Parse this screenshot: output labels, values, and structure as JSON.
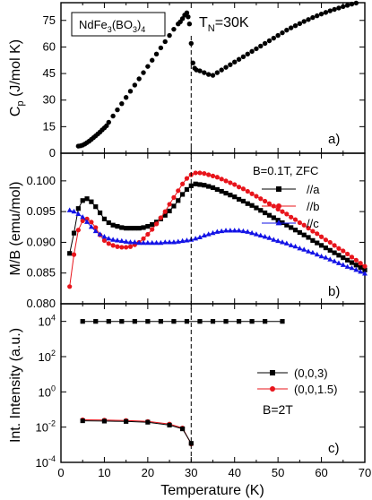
{
  "colors": {
    "black": "#000000",
    "red": "#e8141b",
    "blue": "#1212e6"
  },
  "transition": {
    "x": 30,
    "label": "T",
    "label_sub": "N",
    "label_value": "=30K"
  },
  "compound": {
    "base": "NdFe",
    "sub1": "3",
    "mid": "(BO",
    "sub2": "3",
    "close": ")",
    "sub3": "4"
  },
  "xaxis": {
    "label": "Temperature (K)",
    "range": [
      0,
      70
    ],
    "ticks": [
      "0",
      "10",
      "20",
      "30",
      "40",
      "50",
      "60",
      "70"
    ]
  },
  "chart_data": [
    {
      "type": "scatter",
      "panel": "a)",
      "ylabel_main": "C",
      "ylabel_sub": "p",
      "ylabel_unit": " (J/mol K)",
      "ylim": [
        0,
        85
      ],
      "yticks": [
        "0",
        "15",
        "30",
        "45",
        "60",
        "75"
      ],
      "series": [
        {
          "color": "#000000",
          "marker": "circle",
          "x": [
            4.0,
            4.5,
            5.0,
            5.5,
            6.0,
            6.5,
            7.0,
            7.5,
            8.0,
            8.5,
            9.0,
            9.5,
            10.0,
            10.5,
            11,
            12,
            13,
            14,
            15,
            16,
            17,
            18,
            19,
            20,
            21,
            22,
            23,
            24,
            25,
            26,
            27,
            27.5,
            28,
            28.5,
            29,
            29.3,
            29.6,
            30,
            30.4,
            30.8,
            31.2,
            32,
            33,
            34,
            35,
            36,
            37,
            38,
            39,
            40,
            41,
            42,
            43,
            44,
            45,
            46,
            47,
            48,
            49,
            50,
            51,
            52,
            53,
            54,
            55,
            56,
            57,
            58,
            59,
            60,
            61,
            62,
            63,
            64,
            65,
            66,
            67,
            68,
            69,
            70
          ],
          "y": [
            4.0,
            4.2,
            4.6,
            5.2,
            6.0,
            6.8,
            7.8,
            8.8,
            9.8,
            10.9,
            12.0,
            13.2,
            14.3,
            15.5,
            17.5,
            21.0,
            24.5,
            28.0,
            31.5,
            35.0,
            38.5,
            42.0,
            45.5,
            49.0,
            52.5,
            56.0,
            59.5,
            63.0,
            66.5,
            70.0,
            73.0,
            74.2,
            76.0,
            78.0,
            79.3,
            77.0,
            73.0,
            62.0,
            51.0,
            48.0,
            47.0,
            46.5,
            45.5,
            44.5,
            44.0,
            45.5,
            47.0,
            48.5,
            50.0,
            51.5,
            53.0,
            54.5,
            56.0,
            57.5,
            59.0,
            60.5,
            62.0,
            63.5,
            65.0,
            66.5,
            68.0,
            69.5,
            70.8,
            72.0,
            73.2,
            74.4,
            75.5,
            76.6,
            77.6,
            78.6,
            79.5,
            80.4,
            81.2,
            82.0,
            82.8,
            83.5,
            84.2,
            84.8,
            85.4,
            86.0
          ]
        }
      ]
    },
    {
      "type": "line",
      "panel": "b)",
      "ylabel": "M/B (emu/mol)",
      "ylim": [
        0.08,
        0.1045
      ],
      "yticks": [
        "0.080",
        "0.085",
        "0.090",
        "0.095",
        "0.100"
      ],
      "legend_title": "B=0.1T, ZFC",
      "series": [
        {
          "name": "//a",
          "color": "#000000",
          "marker": "square",
          "x": [
            2,
            3,
            4,
            5,
            6,
            7,
            8,
            9,
            10,
            11,
            12,
            13,
            14,
            15,
            16,
            17,
            18,
            19,
            20,
            21,
            22,
            23,
            24,
            25,
            26,
            27,
            28,
            29,
            30,
            31,
            32,
            33,
            34,
            35,
            36,
            37,
            38,
            39,
            40,
            41,
            42,
            43,
            44,
            45,
            46,
            47,
            48,
            49,
            50,
            51,
            52,
            53,
            54,
            55,
            56,
            57,
            58,
            59,
            60,
            61,
            62,
            63,
            64,
            65,
            66,
            67,
            68,
            69,
            70
          ],
          "y": [
            0.0882,
            0.0915,
            0.0955,
            0.0968,
            0.0971,
            0.0966,
            0.0958,
            0.0948,
            0.0938,
            0.0932,
            0.0928,
            0.0926,
            0.0924,
            0.0923,
            0.0923,
            0.0923,
            0.0923,
            0.0924,
            0.0926,
            0.0929,
            0.0933,
            0.0938,
            0.0944,
            0.0951,
            0.0959,
            0.0968,
            0.0978,
            0.0986,
            0.0992,
            0.0995,
            0.0994,
            0.0993,
            0.0991,
            0.0989,
            0.0986,
            0.0983,
            0.098,
            0.0977,
            0.0974,
            0.097,
            0.0967,
            0.0963,
            0.096,
            0.0956,
            0.0952,
            0.0948,
            0.0944,
            0.094,
            0.0936,
            0.0932,
            0.0928,
            0.0924,
            0.092,
            0.0916,
            0.0912,
            0.0908,
            0.0903,
            0.0899,
            0.0895,
            0.0891,
            0.0887,
            0.0883,
            0.0879,
            0.0875,
            0.0871,
            0.0867,
            0.0863,
            0.0859,
            0.0855
          ]
        },
        {
          "name": "//b",
          "color": "#e8141b",
          "marker": "circle",
          "x": [
            2,
            3,
            4,
            5,
            6,
            7,
            8,
            9,
            10,
            11,
            12,
            13,
            14,
            15,
            16,
            17,
            18,
            19,
            20,
            21,
            22,
            23,
            24,
            25,
            26,
            27,
            28,
            29,
            30,
            31,
            32,
            33,
            34,
            35,
            36,
            37,
            38,
            39,
            40,
            41,
            42,
            43,
            44,
            45,
            46,
            47,
            48,
            49,
            50,
            51,
            52,
            53,
            54,
            55,
            56,
            57,
            58,
            59,
            60,
            61,
            62,
            63,
            64,
            65,
            66,
            67,
            68,
            69,
            70
          ],
          "y": [
            0.0828,
            0.088,
            0.092,
            0.0935,
            0.0938,
            0.0933,
            0.0924,
            0.0912,
            0.0903,
            0.0898,
            0.0895,
            0.0893,
            0.0892,
            0.0892,
            0.0893,
            0.0896,
            0.09,
            0.0906,
            0.0913,
            0.0921,
            0.093,
            0.094,
            0.095,
            0.0962,
            0.0973,
            0.0984,
            0.0995,
            0.1004,
            0.101,
            0.1013,
            0.1013,
            0.1012,
            0.101,
            0.1008,
            0.1006,
            0.1003,
            0.1,
            0.0997,
            0.0994,
            0.099,
            0.0987,
            0.0983,
            0.0979,
            0.0975,
            0.0971,
            0.0967,
            0.0963,
            0.0959,
            0.0954,
            0.095,
            0.0946,
            0.0941,
            0.0937,
            0.0932,
            0.0928,
            0.0923,
            0.0918,
            0.0914,
            0.0909,
            0.0904,
            0.09,
            0.0895,
            0.089,
            0.0886,
            0.0881,
            0.0876,
            0.0871,
            0.0866,
            0.0861
          ]
        },
        {
          "name": "//c",
          "color": "#1212e6",
          "marker": "triangle",
          "x": [
            2,
            3,
            4,
            5,
            6,
            7,
            8,
            9,
            10,
            11,
            12,
            13,
            14,
            15,
            16,
            17,
            18,
            19,
            20,
            21,
            22,
            23,
            24,
            25,
            26,
            27,
            28,
            29,
            30,
            31,
            32,
            33,
            34,
            35,
            36,
            37,
            38,
            39,
            40,
            41,
            42,
            43,
            44,
            45,
            46,
            47,
            48,
            49,
            50,
            51,
            52,
            53,
            54,
            55,
            56,
            57,
            58,
            59,
            60,
            61,
            62,
            63,
            64,
            65,
            66,
            67,
            68,
            69,
            70
          ],
          "y": [
            0.0952,
            0.095,
            0.0946,
            0.0941,
            0.0933,
            0.0925,
            0.0918,
            0.0913,
            0.0909,
            0.0906,
            0.0904,
            0.0903,
            0.0902,
            0.0901,
            0.09,
            0.09,
            0.0899,
            0.0899,
            0.0899,
            0.0899,
            0.0899,
            0.0899,
            0.09,
            0.09,
            0.09,
            0.0901,
            0.0902,
            0.0903,
            0.0904,
            0.0906,
            0.0908,
            0.0911,
            0.0913,
            0.0915,
            0.0917,
            0.0918,
            0.0919,
            0.0919,
            0.0919,
            0.0919,
            0.0918,
            0.0917,
            0.0915,
            0.0913,
            0.0911,
            0.0909,
            0.0907,
            0.0904,
            0.0902,
            0.09,
            0.0898,
            0.0895,
            0.0893,
            0.089,
            0.0888,
            0.0885,
            0.0883,
            0.088,
            0.0877,
            0.0875,
            0.0872,
            0.0869,
            0.0866,
            0.0863,
            0.086,
            0.0858,
            0.0855,
            0.0852,
            0.0849
          ]
        }
      ]
    },
    {
      "type": "line",
      "panel": "c)",
      "ylabel": "Int. Intensity (a.u.)",
      "yscale": "log",
      "ylim_exp": [
        -4,
        5
      ],
      "ytick_base": "10",
      "ytick_exps": [
        "-4",
        "-2",
        "0",
        "2",
        "4"
      ],
      "annotation": "B=2T",
      "series": [
        {
          "name": "(0,0,3)",
          "color": "#000000",
          "marker": "square",
          "x": [
            5,
            8,
            11,
            14,
            17,
            20,
            23,
            26,
            29,
            32,
            35,
            38,
            41,
            44,
            47,
            51
          ],
          "y": [
            10000,
            10000,
            10000,
            10000,
            10000,
            10000,
            10000,
            10000,
            10000,
            10000,
            10000,
            10000,
            10000,
            10000,
            10000,
            10000
          ]
        },
        {
          "name": "(0,0,1.5)",
          "color": "#e8141b",
          "marker": "circle",
          "x": [
            5,
            10,
            15,
            20,
            25,
            28,
            30
          ],
          "y": [
            0.026,
            0.025,
            0.024,
            0.021,
            0.015,
            0.009,
            0.0011
          ]
        },
        {
          "color": "#000000",
          "marker": "square",
          "x": [
            5,
            10,
            15,
            20,
            25,
            28,
            30
          ],
          "y": [
            0.023,
            0.022,
            0.021,
            0.019,
            0.013,
            0.008,
            0.0012
          ]
        }
      ]
    }
  ]
}
